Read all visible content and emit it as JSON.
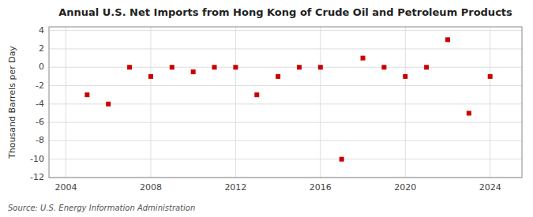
{
  "chart_data": {
    "type": "scatter",
    "title": "Annual U.S. Net Imports from Hong Kong of Crude Oil and Petroleum Products",
    "y_label": "Thousand Barrels per Day",
    "annotation": "Source: U.S. Energy Information Administration",
    "x": [
      2005,
      2006,
      2007,
      2008,
      2009,
      2010,
      2011,
      2012,
      2013,
      2014,
      2015,
      2016,
      2017,
      2018,
      2019,
      2020,
      2021,
      2022,
      2023,
      2024
    ],
    "values": [
      -3.0,
      -4.0,
      0.0,
      -1.0,
      0.0,
      -0.5,
      0.0,
      0.0,
      -3.0,
      -1.0,
      0.0,
      0.0,
      -10.0,
      1.0,
      0.0,
      -1.0,
      0.0,
      3.0,
      -5.0,
      -1.0
    ],
    "color": "#cc0000",
    "marker": "square",
    "xlim": [
      2003.2,
      2025.5
    ],
    "ylim": [
      -12,
      4.4
    ],
    "xticks": [
      2004,
      2008,
      2012,
      2016,
      2020,
      2024
    ],
    "yticks": [
      -12,
      -10,
      -8,
      -6,
      -4,
      -2,
      0,
      2,
      4
    ],
    "grid": true
  }
}
